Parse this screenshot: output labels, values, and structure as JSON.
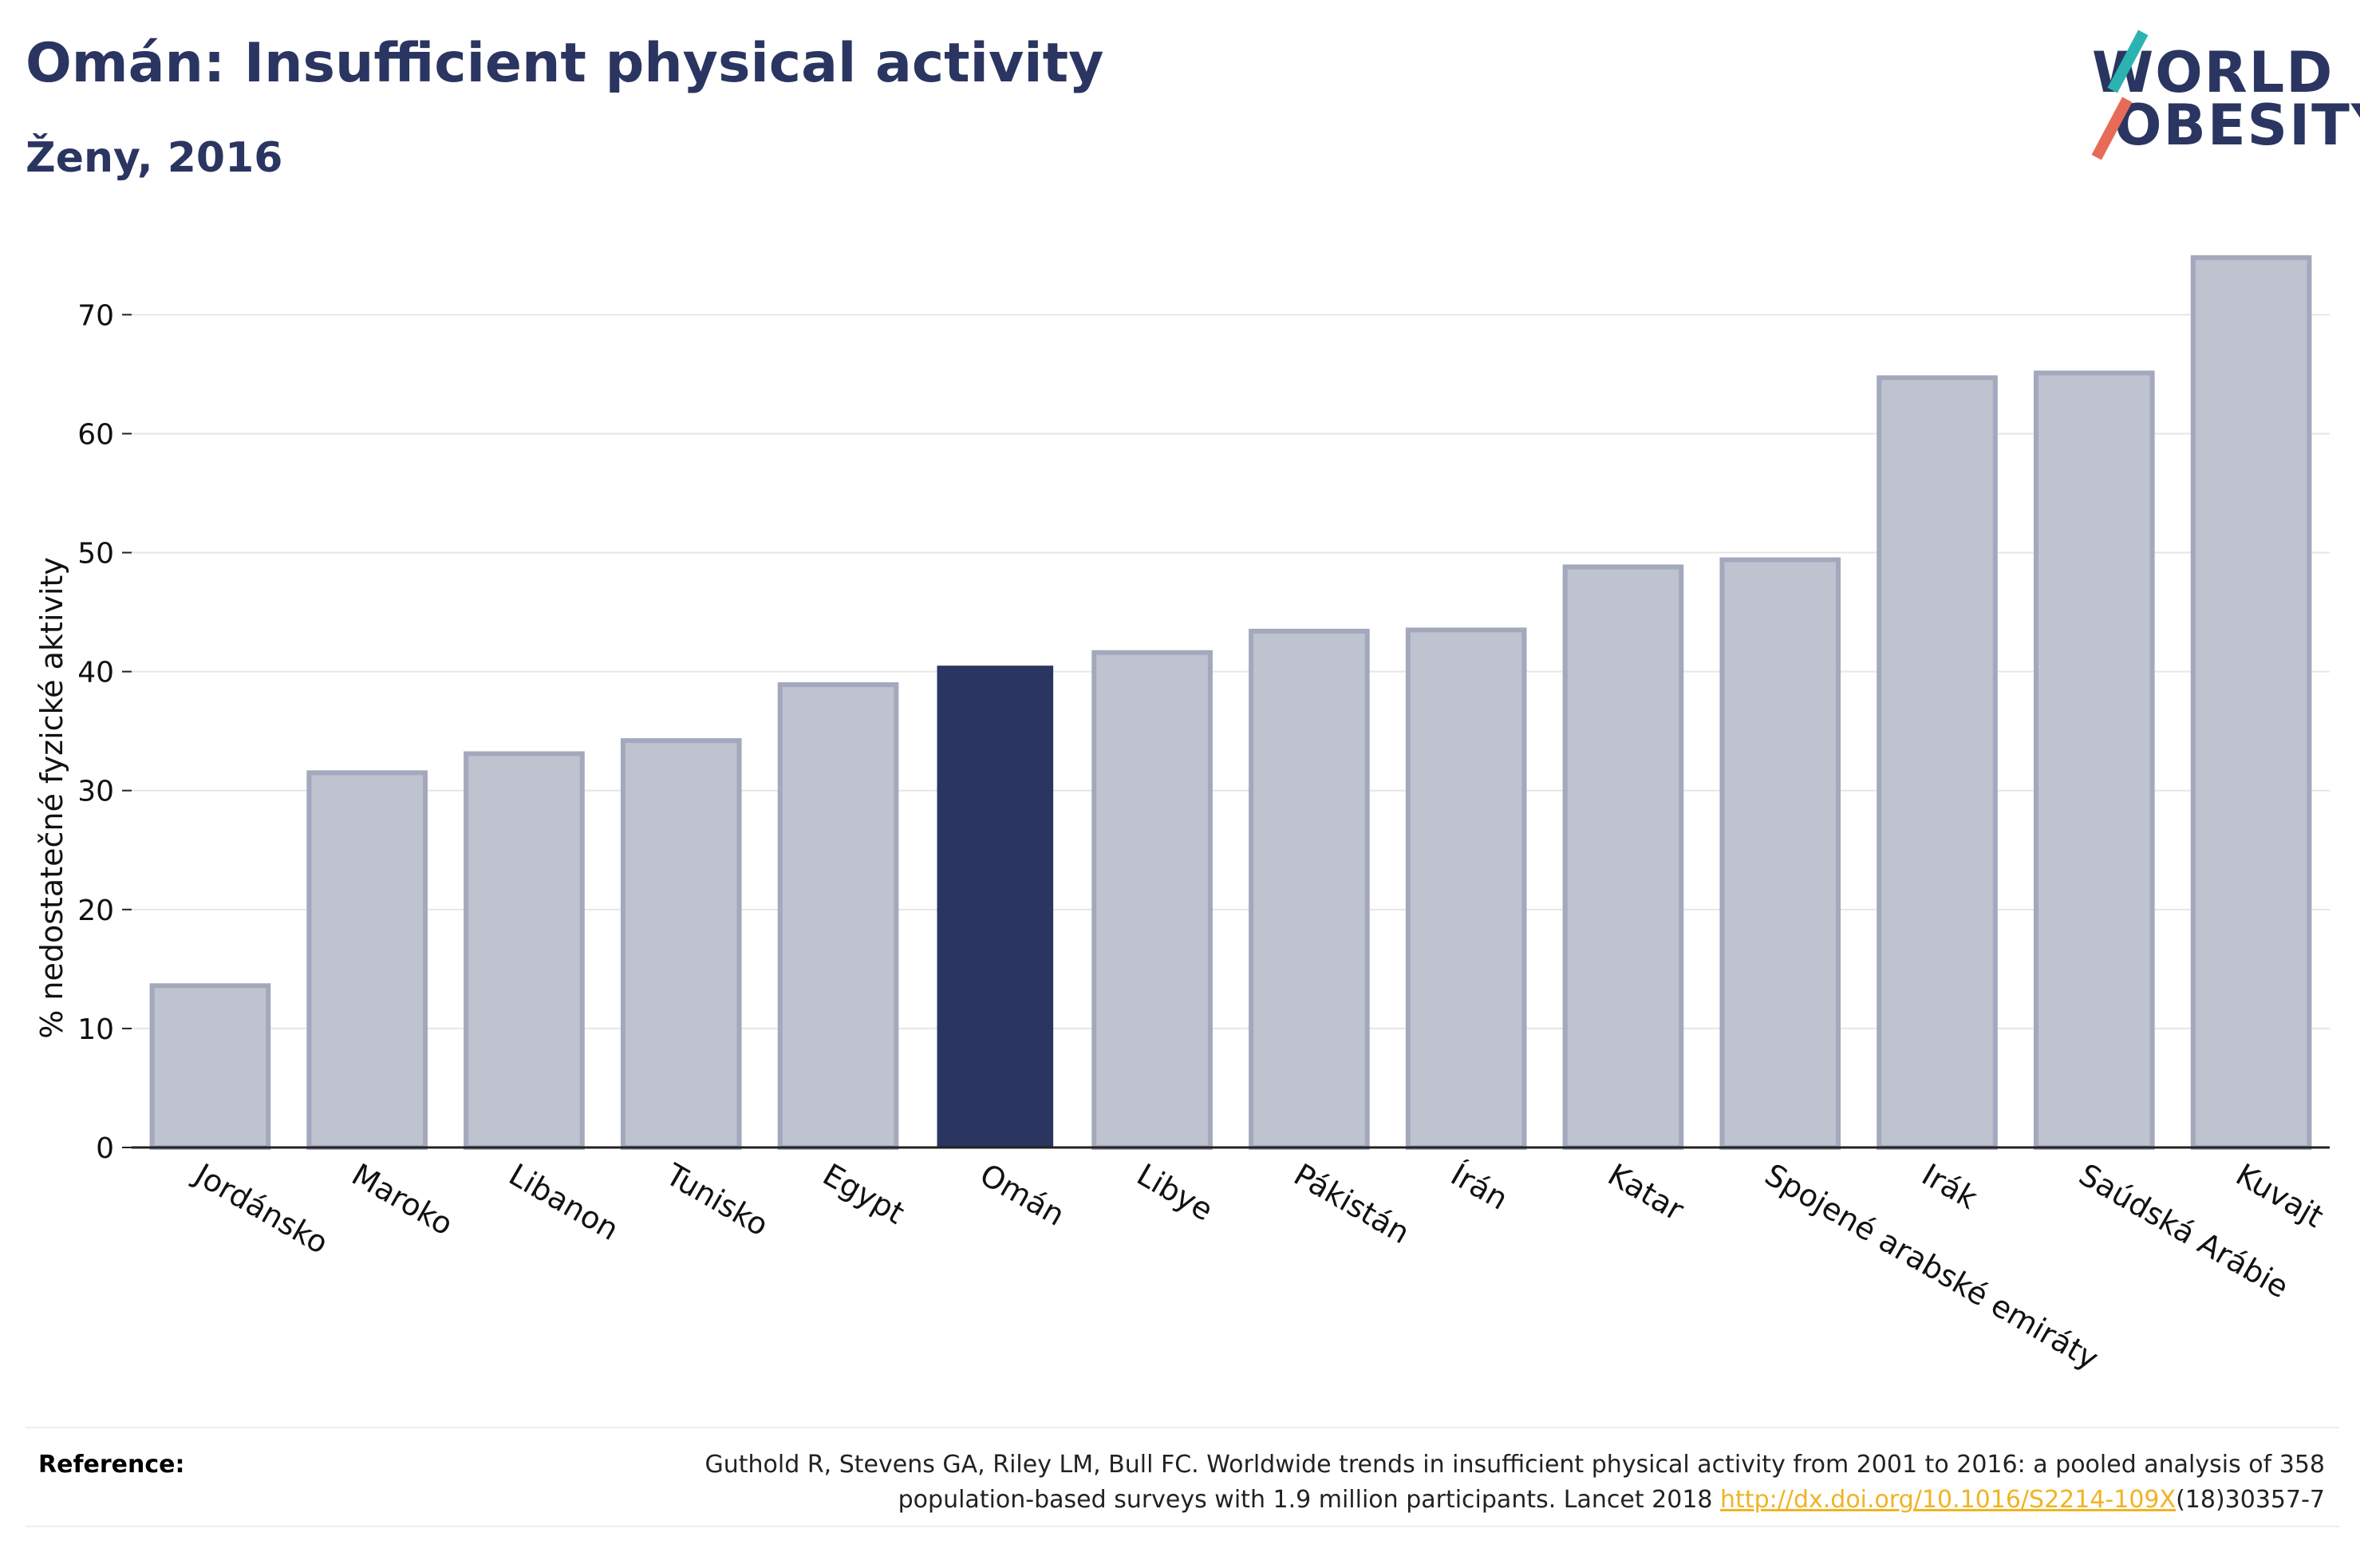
{
  "header": {
    "title": "Omán: Insufficient physical activity",
    "subtitle": "Ženy, 2016"
  },
  "logo": {
    "line1": "WORLD",
    "line2": "OBESITY",
    "accent_teal": "#2ab3b1",
    "accent_coral": "#e86a58"
  },
  "chart_data": {
    "type": "bar",
    "categories": [
      "Jordánsko",
      "Maroko",
      "Libanon",
      "Tunisko",
      "Egypt",
      "Omán",
      "Libye",
      "Pákistán",
      "Írán",
      "Katar",
      "Spojené arabské emiráty",
      "Irák",
      "Saúdská Arábie",
      "Kuvajt"
    ],
    "values": [
      13.6,
      31.5,
      33.1,
      34.2,
      38.9,
      40.5,
      41.6,
      43.4,
      43.5,
      48.8,
      49.4,
      64.7,
      65.1,
      74.8
    ],
    "highlight": "Omán",
    "ylabel": "% nedostatečné fyzické aktivity",
    "yticks": [
      0,
      10,
      20,
      30,
      40,
      50,
      60,
      70
    ],
    "ylim": [
      0,
      77
    ],
    "grid": true,
    "colors": {
      "bar": "#bfc2cf",
      "bar_border": "#a3a8bc",
      "highlight": "#2a3561",
      "grid": "#e6e6e6"
    }
  },
  "reference": {
    "label": "Reference:",
    "text_line1": "Guthold R, Stevens GA, Riley LM, Bull FC. Worldwide trends in insufficient physical activity from 2001 to 2016: a pooled analysis of 358",
    "text_line2_pre": "population-based surveys with 1.9 million participants. Lancet 2018 ",
    "link": "http://dx.doi.org/10.1016/S2214-109X",
    "text_line2_post": "(18)30357-7"
  }
}
